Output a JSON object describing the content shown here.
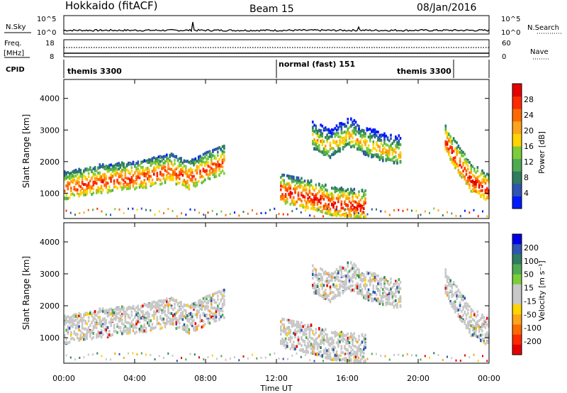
{
  "header": {
    "station": "Hokkaido (fitACF)",
    "beam": "Beam 15",
    "date": "08/Jan/2016"
  },
  "strips": {
    "nsky_label": "N.Sky",
    "nsky_ticks": [
      "10^5",
      "10^0"
    ],
    "nsearch_label": "N.Search",
    "nsearch_ticks": [
      "10^5",
      "10^0"
    ],
    "freq_label": "Freq.",
    "freq_unit": "[MHz]",
    "freq_ticks": [
      "18",
      "8"
    ],
    "nave_label": "Nave",
    "nave_ticks": [
      "60",
      "0"
    ],
    "cpid_label": "CPID",
    "cpid_segments": [
      {
        "label": "themis 3300",
        "start_hour": 0,
        "end_hour": 12
      },
      {
        "label": "normal (fast) 151",
        "start_hour": 12,
        "end_hour": 18.5
      },
      {
        "label": "themis 3300",
        "start_hour": 18.5,
        "end_hour": 22
      }
    ]
  },
  "chart_data": [
    {
      "type": "heatmap",
      "title": "",
      "ylabel": "Slant Range [km]",
      "xlabel": "",
      "yticks": [
        "1000",
        "2000",
        "3000",
        "4000"
      ],
      "ylim": [
        200,
        4600
      ],
      "xlim": [
        0,
        24
      ],
      "colorbar": {
        "label": "Power [dB]",
        "ticks": [
          "4",
          "8",
          "12",
          "16",
          "20",
          "24",
          "28"
        ],
        "range": [
          0,
          30
        ],
        "colors": [
          "#0019ff",
          "#2e54b4",
          "#2f7c61",
          "#4faa52",
          "#7ccd3a",
          "#ffd400",
          "#ffa31a",
          "#ff6a00",
          "#ff2a00",
          "#e60000"
        ]
      },
      "echo_bands": [
        {
          "hours": [
            0,
            2,
            4,
            6,
            7,
            8,
            9
          ],
          "ranges": [
            1200,
            1400,
            1500,
            1750,
            1500,
            1800,
            2000
          ],
          "power": 26
        },
        {
          "hours": [
            12.2,
            13,
            14,
            15,
            16,
            17
          ],
          "ranges": [
            1100,
            1000,
            900,
            700,
            650,
            600
          ],
          "power": 28
        },
        {
          "hours": [
            14,
            15,
            16,
            17,
            18,
            19
          ],
          "ranges": [
            2800,
            2500,
            2900,
            2600,
            2400,
            2300
          ],
          "power": 20
        },
        {
          "hours": [
            21.5,
            22,
            23,
            24
          ],
          "ranges": [
            2700,
            2200,
            1400,
            1100
          ],
          "power": 28
        }
      ]
    },
    {
      "type": "heatmap",
      "title": "",
      "ylabel": "Slant Range [km]",
      "xlabel": "Time UT",
      "xticks": [
        "00:00",
        "04:00",
        "08:00",
        "12:00",
        "16:00",
        "20:00",
        "00:00"
      ],
      "yticks": [
        "1000",
        "2000",
        "3000",
        "4000"
      ],
      "ylim": [
        200,
        4600
      ],
      "xlim": [
        0,
        24
      ],
      "colorbar": {
        "label": "Velocity [m s⁻¹]",
        "ticks": [
          "200",
          "100",
          "50",
          "15",
          "-15",
          "-50",
          "-100",
          "-200"
        ],
        "colors": [
          "#0000e6",
          "#2e54b4",
          "#2f7c61",
          "#4faa52",
          "#7ccd3a",
          "#c8c8c8",
          "#c8c8c8",
          "#ffd400",
          "#ffa31a",
          "#ff6a00",
          "#ff2a00",
          "#e60000"
        ]
      }
    }
  ]
}
